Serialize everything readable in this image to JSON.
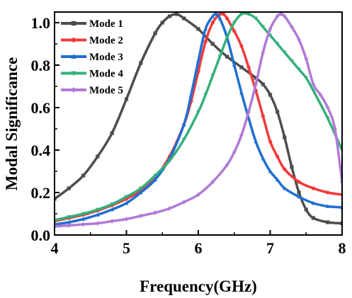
{
  "chart_data": {
    "type": "line",
    "title": "",
    "xlabel": "Frequency(GHz)",
    "ylabel": "Modal Significance",
    "xlim": [
      4,
      8
    ],
    "ylim": [
      0.0,
      1.05
    ],
    "x_ticks": [
      4,
      5,
      6,
      7,
      8
    ],
    "x_tick_labels": [
      "4",
      "5",
      "6",
      "7",
      "8"
    ],
    "y_ticks": [
      0.0,
      0.2,
      0.4,
      0.6,
      0.8,
      1.0
    ],
    "y_tick_labels": [
      "0.0",
      "0.2",
      "0.4",
      "0.6",
      "0.8",
      "1.0"
    ],
    "grid": false,
    "legend_position": "top-left",
    "series": [
      {
        "name": "Mode 1",
        "color": "#4d4d4d",
        "marker": "square",
        "x": [
          4.0,
          4.2,
          4.4,
          4.6,
          4.8,
          5.0,
          5.2,
          5.4,
          5.5,
          5.6,
          5.7,
          5.8,
          6.0,
          6.2,
          6.4,
          6.6,
          6.8,
          6.9,
          7.0,
          7.1,
          7.2,
          7.3,
          7.4,
          7.5,
          7.6,
          7.8,
          8.0
        ],
        "y": [
          0.17,
          0.22,
          0.28,
          0.37,
          0.48,
          0.64,
          0.81,
          0.95,
          1.0,
          1.03,
          1.04,
          1.02,
          0.97,
          0.9,
          0.84,
          0.79,
          0.74,
          0.71,
          0.66,
          0.58,
          0.46,
          0.32,
          0.2,
          0.12,
          0.08,
          0.06,
          0.055
        ]
      },
      {
        "name": "Mode 2",
        "color": "#f03a3a",
        "marker": "circle",
        "x": [
          4.0,
          4.2,
          4.4,
          4.6,
          4.8,
          5.0,
          5.2,
          5.4,
          5.6,
          5.8,
          5.9,
          6.0,
          6.1,
          6.2,
          6.3,
          6.35,
          6.4,
          6.5,
          6.6,
          6.7,
          6.8,
          6.9,
          7.0,
          7.1,
          7.2,
          7.4,
          7.6,
          7.8,
          8.0
        ],
        "y": [
          0.065,
          0.08,
          0.095,
          0.115,
          0.14,
          0.17,
          0.21,
          0.27,
          0.37,
          0.52,
          0.63,
          0.77,
          0.91,
          1.0,
          1.04,
          1.04,
          1.02,
          0.96,
          0.89,
          0.79,
          0.68,
          0.56,
          0.44,
          0.37,
          0.31,
          0.25,
          0.22,
          0.2,
          0.19
        ]
      },
      {
        "name": "Mode 3",
        "color": "#1f6fd1",
        "marker": "triangle",
        "x": [
          4.0,
          4.2,
          4.4,
          4.6,
          4.8,
          5.0,
          5.2,
          5.4,
          5.6,
          5.8,
          5.9,
          6.0,
          6.1,
          6.2,
          6.25,
          6.3,
          6.4,
          6.5,
          6.6,
          6.7,
          6.8,
          6.9,
          7.0,
          7.1,
          7.2,
          7.4,
          7.6,
          7.8,
          8.0
        ],
        "y": [
          0.05,
          0.06,
          0.075,
          0.095,
          0.12,
          0.15,
          0.2,
          0.26,
          0.36,
          0.52,
          0.66,
          0.82,
          0.97,
          1.03,
          1.04,
          1.02,
          0.93,
          0.8,
          0.67,
          0.55,
          0.44,
          0.36,
          0.3,
          0.26,
          0.22,
          0.18,
          0.15,
          0.135,
          0.13
        ]
      },
      {
        "name": "Mode 4",
        "color": "#33b07a",
        "marker": "triangle-down",
        "x": [
          4.0,
          4.2,
          4.4,
          4.6,
          4.8,
          5.0,
          5.2,
          5.4,
          5.6,
          5.8,
          6.0,
          6.1,
          6.2,
          6.3,
          6.4,
          6.5,
          6.6,
          6.7,
          6.8,
          6.9,
          7.0,
          7.1,
          7.2,
          7.3,
          7.4,
          7.5,
          7.6,
          7.8,
          8.0
        ],
        "y": [
          0.07,
          0.085,
          0.1,
          0.12,
          0.145,
          0.18,
          0.22,
          0.28,
          0.35,
          0.45,
          0.58,
          0.66,
          0.75,
          0.84,
          0.93,
          1.0,
          1.04,
          1.04,
          1.02,
          0.98,
          0.94,
          0.9,
          0.86,
          0.82,
          0.78,
          0.74,
          0.68,
          0.55,
          0.4
        ]
      },
      {
        "name": "Mode 5",
        "color": "#b07ad6",
        "marker": "diamond",
        "x": [
          4.0,
          4.2,
          4.4,
          4.6,
          4.8,
          5.0,
          5.2,
          5.4,
          5.6,
          5.8,
          6.0,
          6.2,
          6.4,
          6.5,
          6.6,
          6.7,
          6.8,
          6.9,
          7.0,
          7.1,
          7.15,
          7.2,
          7.3,
          7.4,
          7.5,
          7.6,
          7.7,
          7.8,
          7.9,
          8.0
        ],
        "y": [
          0.04,
          0.045,
          0.05,
          0.055,
          0.065,
          0.075,
          0.09,
          0.105,
          0.125,
          0.155,
          0.19,
          0.25,
          0.33,
          0.39,
          0.47,
          0.58,
          0.71,
          0.86,
          0.97,
          1.03,
          1.04,
          1.03,
          0.98,
          0.92,
          0.83,
          0.71,
          0.66,
          0.6,
          0.5,
          0.25
        ]
      }
    ]
  }
}
